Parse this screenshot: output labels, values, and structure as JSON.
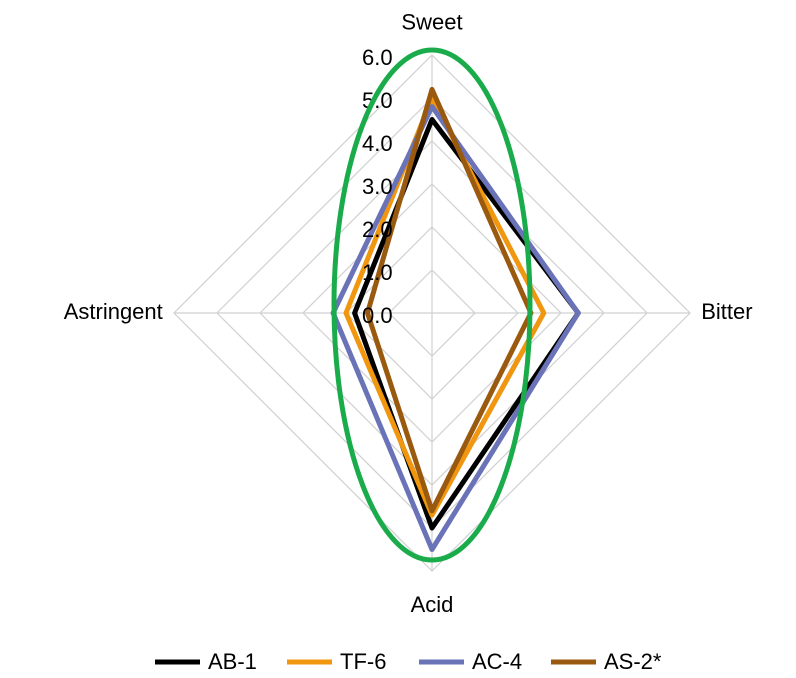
{
  "chart_data": {
    "type": "radar",
    "categories": [
      "Sweet",
      "Bitter",
      "Acid",
      "Astringent"
    ],
    "series": [
      {
        "name": "AB-1",
        "color": "#000000",
        "values": [
          4.5,
          3.4,
          5.0,
          1.8
        ]
      },
      {
        "name": "TF-6",
        "color": "#f0960f",
        "values": [
          5.0,
          2.6,
          4.7,
          2.0
        ]
      },
      {
        "name": "AC-4",
        "color": "#6a72b8",
        "values": [
          4.8,
          3.4,
          5.5,
          2.3
        ]
      },
      {
        "name": "AS-2*",
        "color": "#995a0f",
        "values": [
          5.2,
          2.3,
          4.6,
          1.5
        ]
      }
    ],
    "ylim": [
      0,
      6
    ],
    "yticks": [
      {
        "value": 0,
        "label": "0.0"
      },
      {
        "value": 1,
        "label": "1.0"
      },
      {
        "value": 2,
        "label": "2.0"
      },
      {
        "value": 3,
        "label": "3.0"
      },
      {
        "value": 4,
        "label": "4.0"
      },
      {
        "value": 5,
        "label": "5.0"
      },
      {
        "value": 6,
        "label": "6.0"
      }
    ],
    "grid": true,
    "legend": "bottom"
  }
}
